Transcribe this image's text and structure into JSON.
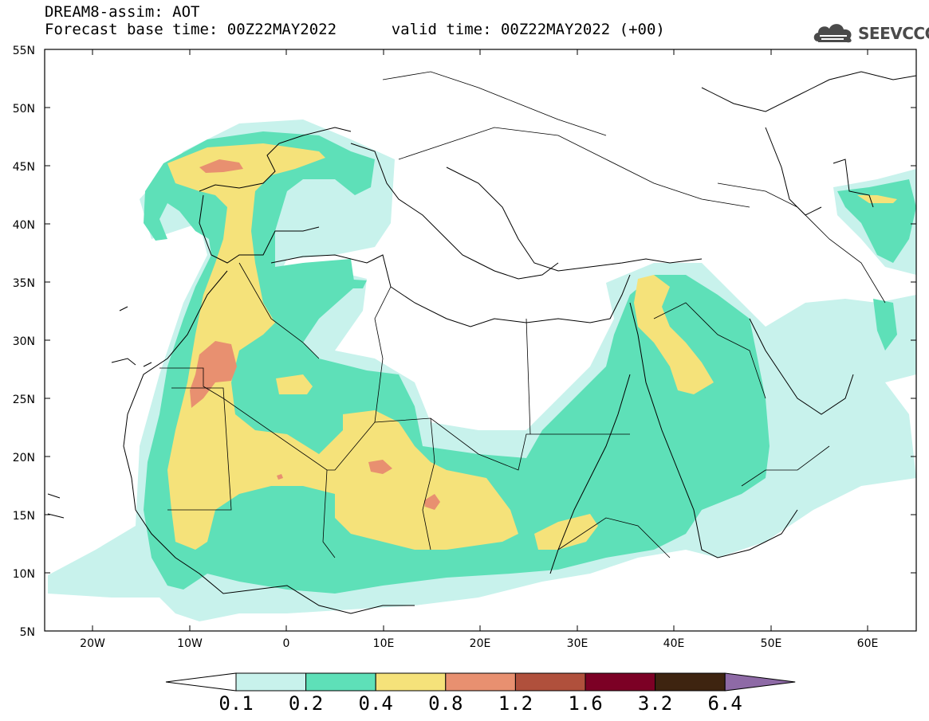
{
  "header": {
    "title": "DREAM8-assim: AOT",
    "base_time_label": "Forecast base time: 00Z22MAY2022",
    "valid_time_label": "valid time: 00Z22MAY2022 (+00)"
  },
  "logo": {
    "text": "SEEVCCC",
    "icon": "cloud-icon"
  },
  "map": {
    "variable": "AOT",
    "lat_labels": [
      "55N",
      "50N",
      "45N",
      "40N",
      "35N",
      "30N",
      "25N",
      "20N",
      "15N",
      "10N",
      "5N"
    ],
    "lon_labels": [
      "20W",
      "10W",
      "0",
      "10E",
      "20E",
      "30E",
      "40E",
      "50E",
      "60E"
    ]
  },
  "colorbar": {
    "levels": [
      "0.1",
      "0.2",
      "0.4",
      "0.8",
      "1.2",
      "1.6",
      "3.2",
      "6.4"
    ],
    "colors": [
      "#ffffff",
      "#c8f2ec",
      "#5ee0b8",
      "#f5e27a",
      "#e89070",
      "#b0503c",
      "#7c0025",
      "#3e2410",
      "#8e6aa6"
    ]
  }
}
